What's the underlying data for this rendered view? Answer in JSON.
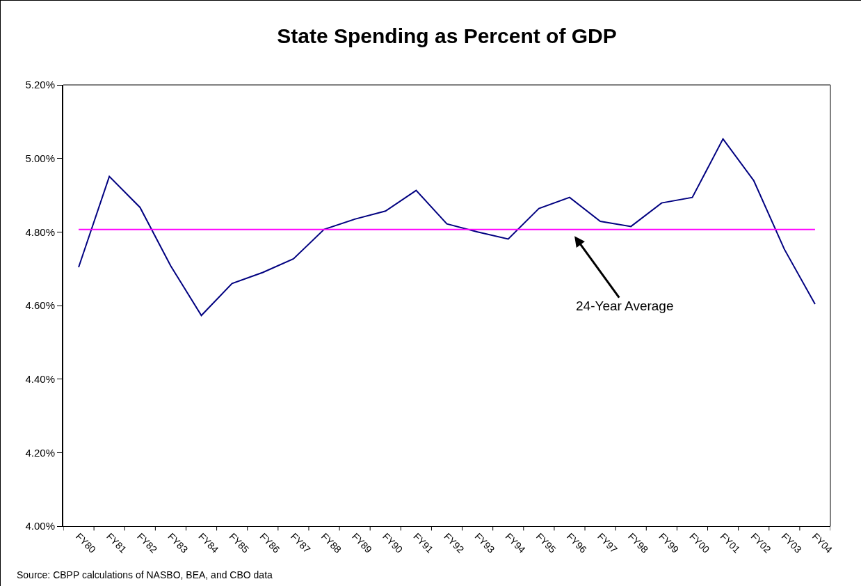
{
  "chart_data": {
    "type": "line",
    "title": "State Spending as Percent of GDP",
    "categories": [
      "FY80",
      "FY81",
      "FY82",
      "FY83",
      "FY84",
      "FY85",
      "FY86",
      "FY87",
      "FY88",
      "FY89",
      "FY90",
      "FY91",
      "FY92",
      "FY93",
      "FY94",
      "FY95",
      "FY96",
      "FY97",
      "FY98",
      "FY99",
      "FY00",
      "FY01",
      "FY02",
      "FY03",
      "FY04"
    ],
    "series": [
      {
        "color": "#000080",
        "values": [
          4.704,
          4.951,
          4.867,
          4.708,
          4.573,
          4.66,
          4.69,
          4.727,
          4.807,
          4.835,
          4.857,
          4.913,
          4.822,
          4.8,
          4.781,
          4.864,
          4.894,
          4.829,
          4.815,
          4.879,
          4.894,
          5.053,
          4.94,
          4.753,
          4.604
        ]
      }
    ],
    "ylim": [
      4.0,
      5.2
    ],
    "yticks": [
      {
        "value": 4.0,
        "label": "4.00%"
      },
      {
        "value": 4.2,
        "label": "4.20%"
      },
      {
        "value": 4.4,
        "label": "4.40%"
      },
      {
        "value": 4.6,
        "label": "4.60%"
      },
      {
        "value": 4.8,
        "label": "4.80%"
      },
      {
        "value": 5.0,
        "label": "5.00%"
      },
      {
        "value": 5.2,
        "label": "5.20%"
      }
    ],
    "ref_lines": [
      {
        "axis": "y",
        "value": 4.807,
        "color": "#ff00ff"
      }
    ],
    "annotations": [
      {
        "text": "24-Year Average",
        "x": "FY96",
        "y": 4.807
      },
      "Source: CBPP calculations of NASBO, BEA, and CBO data"
    ],
    "grid": false,
    "marker": "none",
    "line_style": "solid"
  }
}
